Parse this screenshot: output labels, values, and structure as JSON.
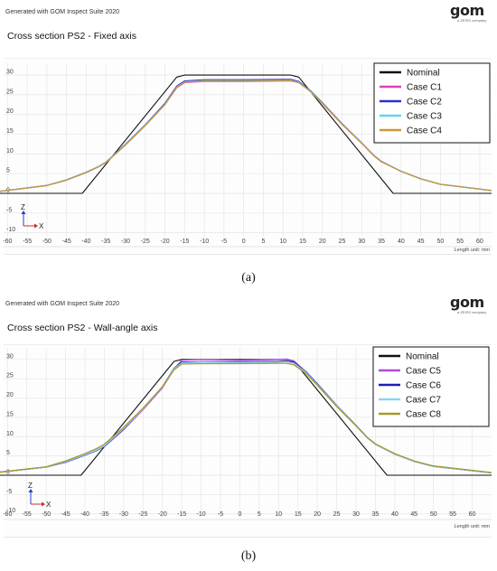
{
  "header_a": {
    "generated": "Generated with GOM Inspect Suite 2020",
    "logo_text": "gom",
    "logo_sub": "a ZEISS company"
  },
  "header_b": {
    "generated": "Generated with GOM Inspect Suite 2020",
    "logo_text": "gom",
    "logo_sub": "a ZEISS company"
  },
  "captions": {
    "a": "(a)",
    "b": "(b)"
  },
  "colors": {
    "Nominal": "#111111",
    "C1": "#e23fb8",
    "C2": "#2a2fd0",
    "C3": "#5fd6e8",
    "C4": "#c79a3c",
    "C5": "#b04be0",
    "C6": "#1f1fb5",
    "C7": "#8cd2ee",
    "C8": "#a59a2c"
  },
  "chart_data": [
    {
      "type": "line",
      "title": "Cross section PS2 - Fixed axis",
      "xlabel": "",
      "ylabel": "",
      "unit_label": "Length unit: mm",
      "axis_indicator": {
        "z": "Z",
        "x": "X"
      },
      "xlim": [
        -61,
        63
      ],
      "ylim": [
        -11,
        33
      ],
      "xticks": [
        -60,
        -55,
        -50,
        -45,
        -40,
        -35,
        -30,
        -25,
        -20,
        -15,
        -10,
        -5,
        0,
        5,
        10,
        15,
        20,
        25,
        30,
        35,
        40,
        45,
        50,
        55,
        60
      ],
      "yticks": [
        -10,
        -5,
        0,
        5,
        10,
        15,
        20,
        25,
        30
      ],
      "grid": true,
      "legend_position": "top-right",
      "series": [
        {
          "name": "Nominal",
          "x": [
            -62,
            -41,
            -17,
            -15,
            12,
            14,
            38,
            63
          ],
          "y": [
            0,
            0,
            29.5,
            30,
            30,
            29.5,
            0,
            0
          ]
        },
        {
          "name": "Case C1",
          "x": [
            -62,
            -50,
            -45,
            -40,
            -37,
            -35,
            -30,
            -25,
            -20,
            -17,
            -15,
            -10,
            0,
            10,
            12,
            14,
            17,
            20,
            25,
            30,
            33,
            35,
            40,
            45,
            50,
            63
          ],
          "y": [
            0.5,
            2.0,
            3.4,
            5.3,
            6.7,
            7.8,
            12.3,
            17.2,
            22.5,
            26.8,
            28.1,
            28.4,
            28.4,
            28.5,
            28.5,
            28.1,
            25.8,
            22.8,
            17.5,
            12.7,
            9.6,
            8.0,
            5.6,
            3.7,
            2.3,
            0.7
          ]
        },
        {
          "name": "Case C2",
          "x": [
            -62,
            -50,
            -45,
            -40,
            -37,
            -35,
            -30,
            -25,
            -20,
            -17,
            -15,
            -10,
            0,
            10,
            12,
            14,
            17,
            20,
            25,
            30,
            33,
            35,
            40,
            45,
            50,
            63
          ],
          "y": [
            0.5,
            2.0,
            3.4,
            5.3,
            6.7,
            7.9,
            12.5,
            17.4,
            22.8,
            27.2,
            28.5,
            28.8,
            28.8,
            28.9,
            28.9,
            28.4,
            26.0,
            23.0,
            17.7,
            12.8,
            9.7,
            8.1,
            5.6,
            3.7,
            2.3,
            0.7
          ]
        },
        {
          "name": "Case C3",
          "x": [
            -62,
            -50,
            -45,
            -40,
            -37,
            -35,
            -30,
            -25,
            -20,
            -17,
            -15,
            -10,
            0,
            10,
            12,
            14,
            17,
            20,
            25,
            30,
            33,
            35,
            40,
            45,
            50,
            63
          ],
          "y": [
            0.5,
            2.0,
            3.5,
            5.4,
            6.8,
            7.9,
            12.4,
            17.3,
            22.6,
            27.0,
            28.3,
            28.6,
            28.6,
            28.7,
            28.7,
            28.2,
            25.9,
            22.9,
            17.6,
            12.8,
            9.6,
            8.0,
            5.6,
            3.7,
            2.3,
            0.7
          ]
        },
        {
          "name": "Case C4",
          "x": [
            -62,
            -50,
            -45,
            -40,
            -37,
            -35,
            -30,
            -25,
            -20,
            -17,
            -15,
            -10,
            0,
            10,
            12,
            14,
            17,
            20,
            25,
            30,
            33,
            35,
            40,
            45,
            50,
            63
          ],
          "y": [
            0.5,
            2.0,
            3.4,
            5.3,
            6.7,
            7.8,
            12.3,
            17.2,
            22.5,
            26.9,
            28.2,
            28.5,
            28.5,
            28.6,
            28.6,
            28.1,
            25.8,
            22.8,
            17.5,
            12.7,
            9.6,
            8.0,
            5.6,
            3.7,
            2.3,
            0.7
          ]
        }
      ]
    },
    {
      "type": "line",
      "title": "Cross section PS2 - Wall-angle axis",
      "xlabel": "",
      "ylabel": "",
      "unit_label": "Length unit: mm",
      "axis_indicator": {
        "z": "Z",
        "x": "X"
      },
      "xlim": [
        -61,
        65
      ],
      "ylim": [
        -11,
        33
      ],
      "xticks": [
        -60,
        -55,
        -50,
        -45,
        -40,
        -35,
        -30,
        -25,
        -20,
        -15,
        -10,
        -5,
        0,
        5,
        10,
        15,
        20,
        25,
        30,
        35,
        40,
        45,
        50,
        55,
        60
      ],
      "yticks": [
        -10,
        -5,
        0,
        5,
        10,
        15,
        20,
        25,
        30
      ],
      "grid": true,
      "legend_position": "top-right",
      "series": [
        {
          "name": "Nominal",
          "x": [
            -62,
            -41,
            -17,
            -15,
            12,
            14,
            38,
            65
          ],
          "y": [
            0,
            0,
            29.5,
            30,
            30,
            29.5,
            0,
            0
          ]
        },
        {
          "name": "Case C5",
          "x": [
            -62,
            -50,
            -45,
            -40,
            -37,
            -35,
            -30,
            -25,
            -20,
            -17,
            -15,
            -10,
            0,
            10,
            12,
            14,
            17,
            20,
            25,
            30,
            33,
            35,
            40,
            45,
            50,
            65
          ],
          "y": [
            0.8,
            2.1,
            3.4,
            5.2,
            6.4,
            7.4,
            11.8,
            17.0,
            22.6,
            27.5,
            29.8,
            30.0,
            29.8,
            30.0,
            30.1,
            29.6,
            26.8,
            23.6,
            18.0,
            12.8,
            9.6,
            8.0,
            5.4,
            3.6,
            2.3,
            0.6
          ]
        },
        {
          "name": "Case C6",
          "x": [
            -62,
            -50,
            -45,
            -40,
            -37,
            -35,
            -30,
            -25,
            -20,
            -17,
            -15,
            -10,
            0,
            10,
            12,
            14,
            17,
            20,
            25,
            30,
            33,
            35,
            40,
            45,
            50,
            65
          ],
          "y": [
            0.8,
            2.1,
            3.4,
            5.2,
            6.4,
            7.5,
            12.0,
            17.3,
            22.9,
            27.7,
            29.3,
            29.4,
            29.4,
            29.5,
            29.6,
            29.2,
            26.9,
            23.7,
            18.1,
            12.9,
            9.7,
            8.1,
            5.5,
            3.6,
            2.3,
            0.6
          ]
        },
        {
          "name": "Case C7",
          "x": [
            -62,
            -50,
            -45,
            -40,
            -37,
            -35,
            -30,
            -25,
            -20,
            -17,
            -15,
            -10,
            0,
            10,
            12,
            14,
            17,
            20,
            25,
            30,
            33,
            35,
            40,
            45,
            50,
            65
          ],
          "y": [
            0.8,
            2.1,
            3.5,
            5.3,
            6.5,
            7.6,
            12.1,
            17.2,
            22.8,
            27.6,
            29.1,
            29.3,
            29.2,
            29.3,
            29.4,
            29.0,
            26.7,
            23.5,
            18.0,
            12.8,
            9.6,
            8.0,
            5.4,
            3.6,
            2.3,
            0.6
          ]
        },
        {
          "name": "Case C8",
          "x": [
            -62,
            -50,
            -45,
            -40,
            -37,
            -35,
            -30,
            -25,
            -20,
            -17,
            -15,
            -10,
            0,
            10,
            12,
            14,
            17,
            20,
            25,
            30,
            33,
            35,
            40,
            45,
            50,
            65
          ],
          "y": [
            0.8,
            2.2,
            3.7,
            5.6,
            6.9,
            8.0,
            12.4,
            17.4,
            22.9,
            27.3,
            28.8,
            28.9,
            28.9,
            29.0,
            29.0,
            28.6,
            26.4,
            23.3,
            17.8,
            12.8,
            9.7,
            8.1,
            5.6,
            3.7,
            2.4,
            0.7
          ]
        }
      ]
    }
  ]
}
